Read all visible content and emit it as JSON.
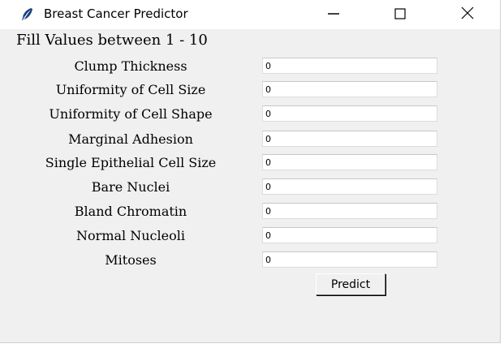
{
  "window": {
    "title": "Breast Cancer Predictor",
    "icon": "feather-icon"
  },
  "controls": {
    "minimize": "minimize-icon",
    "maximize": "maximize-icon",
    "close": "close-icon"
  },
  "form": {
    "instruction": "Fill Values between 1 - 10",
    "fields": [
      {
        "label": "Clump Thickness",
        "value": "0"
      },
      {
        "label": "Uniformity of Cell Size",
        "value": "0"
      },
      {
        "label": "Uniformity of Cell Shape",
        "value": "0"
      },
      {
        "label": "Marginal Adhesion",
        "value": "0"
      },
      {
        "label": "Single Epithelial Cell Size",
        "value": "0"
      },
      {
        "label": "Bare Nuclei",
        "value": "0"
      },
      {
        "label": "Bland Chromatin",
        "value": "0"
      },
      {
        "label": "Normal Nucleoli",
        "value": "0"
      },
      {
        "label": "Mitoses",
        "value": "0"
      }
    ],
    "submit_label": "Predict"
  }
}
